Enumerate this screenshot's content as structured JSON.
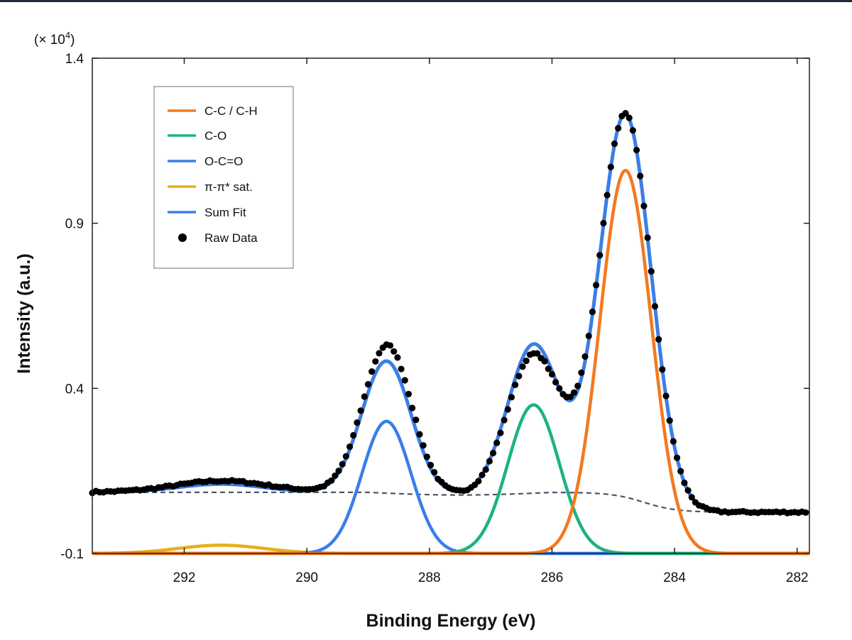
{
  "colors": {
    "topbar": "#1f2937",
    "cc": "#f47920",
    "co": "#1db37f",
    "oco": "#3b7ee8",
    "sat": "#e6b018",
    "sum": "#3b7ee8",
    "raw": "#000000",
    "background_line": "#4a5668"
  },
  "chart_data": {
    "type": "line",
    "xlabel": "Binding Energy (eV)",
    "ylabel": "Intensity (a.u.)",
    "y_scale_label_prefix": "(× 10",
    "y_scale_label_exp": "4",
    "y_scale_label_suffix": ")",
    "xlim": [
      293.5,
      281.8
    ],
    "ylim": [
      -0.1,
      1.4
    ],
    "x_reversed": true,
    "x_ticks": [
      292,
      290,
      288,
      286,
      284,
      282
    ],
    "x_tick_labels": [
      "292",
      "290",
      "288",
      "286",
      "284",
      "282"
    ],
    "y_ticks": [
      -0.1,
      0.4,
      0.9,
      1.4
    ],
    "y_tick_labels": [
      "-0.1",
      "0.4",
      "0.9",
      "1.4"
    ],
    "grid": false,
    "legend_position": "top-left",
    "legend": [
      {
        "label": "C-C / C-H",
        "key": "cc",
        "marker": "line"
      },
      {
        "label": "C-O",
        "key": "co",
        "marker": "line"
      },
      {
        "label": "O-C=O",
        "key": "oco",
        "marker": "line"
      },
      {
        "label": "π-π* sat.",
        "key": "sat",
        "marker": "line"
      },
      {
        "label": "Sum Fit",
        "key": "sum",
        "marker": "line"
      },
      {
        "label": "Raw Data",
        "key": "raw",
        "marker": "dot"
      }
    ],
    "components": [
      {
        "key": "cc",
        "center": 284.8,
        "height": 1.16,
        "sigma": 0.42
      },
      {
        "key": "co",
        "center": 286.3,
        "height": 0.45,
        "sigma": 0.42
      },
      {
        "key": "oco",
        "center": 288.7,
        "height": 0.4,
        "sigma": 0.4
      },
      {
        "key": "sat",
        "center": 291.4,
        "height": 0.025,
        "sigma": 0.7
      }
    ],
    "background": {
      "high_level": 0.085,
      "low_level": 0.025,
      "step_center": 284.5,
      "step_width": 0.8,
      "slope_start": 289.0
    },
    "raw_data": {
      "x_start": 293.5,
      "x_end": 281.85,
      "step": 0.06
    }
  }
}
